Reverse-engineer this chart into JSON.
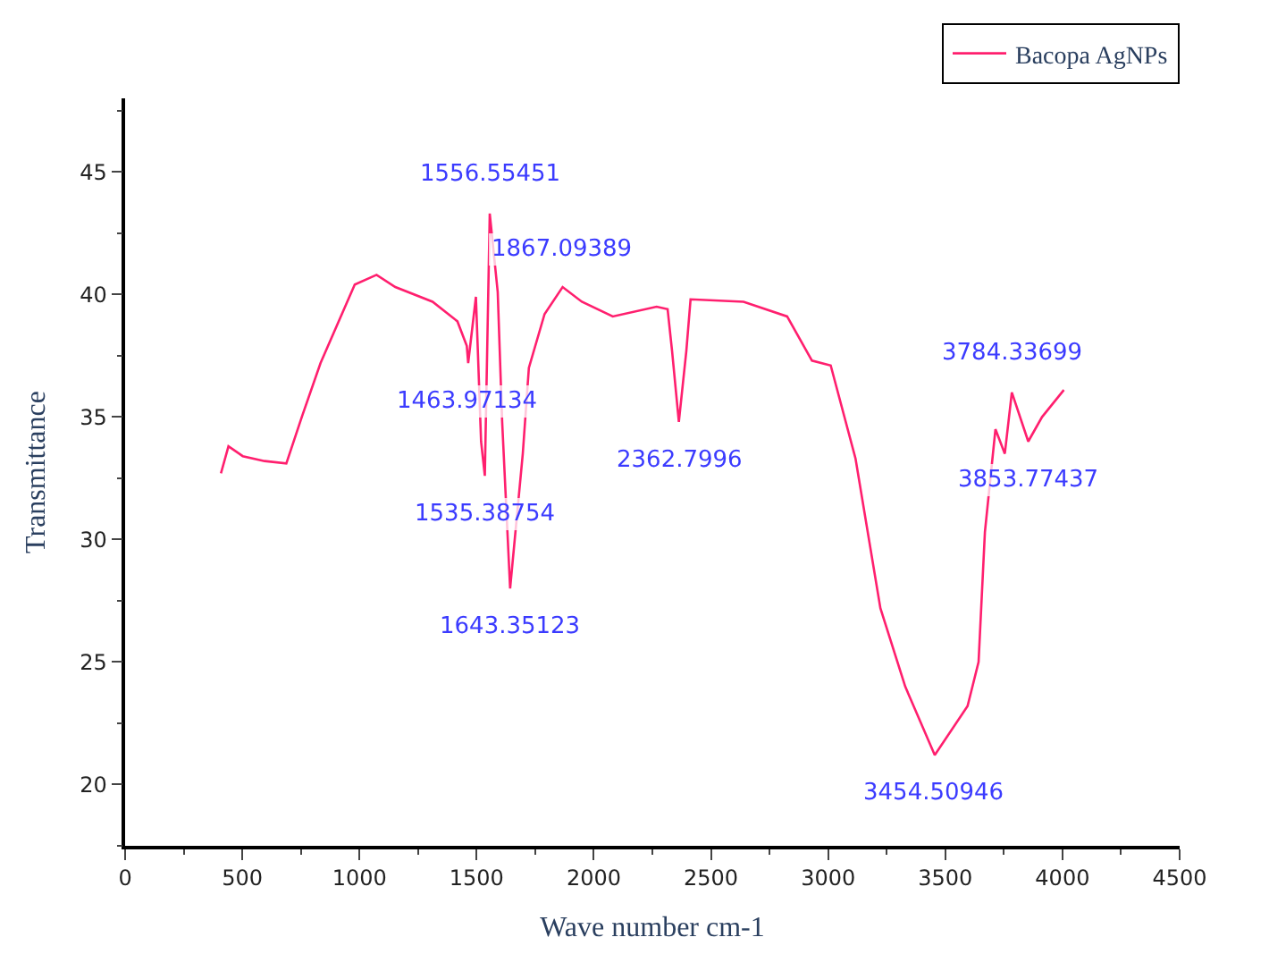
{
  "chart_data": {
    "type": "line",
    "xlabel": "Wave number cm-1",
    "ylabel": "Transmittance",
    "xlim": [
      0,
      4500
    ],
    "xticks": [
      0,
      500,
      1000,
      1500,
      2000,
      2500,
      3000,
      3500,
      4000,
      4500
    ],
    "ylim": [
      17.5,
      48
    ],
    "yticks": [
      20,
      25,
      30,
      35,
      40,
      45
    ],
    "legend": "top right",
    "marker": "none",
    "line_style": "solid",
    "series": [
      {
        "name": "Bacopa AgNPs",
        "color": "#ff1f6e",
        "x": [
          409,
          441,
          502,
          595,
          688,
          754,
          834,
          980,
          1073,
          1153,
          1312,
          1418,
          1458,
          1464,
          1497,
          1519,
          1535,
          1556,
          1590,
          1609,
          1643,
          1697,
          1723,
          1790,
          1867,
          1949,
          2081,
          2268,
          2315,
          2334,
          2363,
          2395,
          2413,
          2639,
          2825,
          2931,
          3011,
          3117,
          3223,
          3329,
          3455,
          3595,
          3642,
          3669,
          3714,
          3754,
          3784,
          3854,
          3913,
          4006
        ],
        "values": [
          32.7,
          33.8,
          33.4,
          33.2,
          33.1,
          35.0,
          37.2,
          40.4,
          40.8,
          40.3,
          39.7,
          38.9,
          37.9,
          37.2,
          39.9,
          34.0,
          32.6,
          43.3,
          40.1,
          34.8,
          28.0,
          33.5,
          37.0,
          39.2,
          40.3,
          39.7,
          39.1,
          39.5,
          39.4,
          37.7,
          34.8,
          37.7,
          39.8,
          39.7,
          39.1,
          37.3,
          37.1,
          33.3,
          27.2,
          24.0,
          21.2,
          23.2,
          25.0,
          30.3,
          34.5,
          33.5,
          36.0,
          34.0,
          35.0,
          36.1
        ]
      }
    ],
    "annotations": [
      {
        "text": "1556.55451",
        "x": 1556,
        "y": 43.3
      },
      {
        "text": "1867.09389",
        "x": 1867,
        "y": 40.3
      },
      {
        "text": "1463.97134",
        "x": 1464,
        "y": 37.2
      },
      {
        "text": "1535.38754",
        "x": 1535,
        "y": 32.6
      },
      {
        "text": "1643.35123",
        "x": 1643,
        "y": 28.0
      },
      {
        "text": "2362.7996",
        "x": 2363,
        "y": 34.8
      },
      {
        "text": "3454.50946",
        "x": 3455,
        "y": 21.2
      },
      {
        "text": "3784.33699",
        "x": 3784,
        "y": 36.0
      },
      {
        "text": "3853.77437",
        "x": 3854,
        "y": 34.0
      }
    ]
  }
}
